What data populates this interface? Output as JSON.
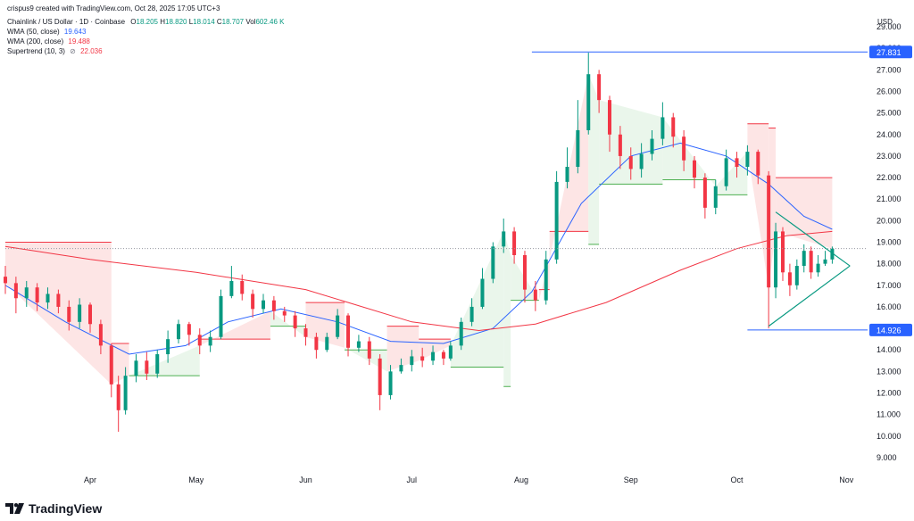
{
  "header": {
    "attribution": "crispus9 created with TradingView.com, Oct 28, 2025 17:05 UTC+3",
    "symbol": "Chainlink / US Dollar · 1D · Coinbase",
    "open_label": "O",
    "open": "18.205",
    "high_label": "H",
    "high": "18.820",
    "low_label": "L",
    "low": "18.014",
    "close_label": "C",
    "close": "18.707",
    "volume_label": "Vol",
    "volume": "602.46 K"
  },
  "indicators": {
    "wma50": {
      "label": "WMA (50, close)",
      "value": "19.643"
    },
    "wma200": {
      "label": "WMA (200, close)",
      "value": "19.488"
    },
    "supertrend": {
      "label": "Supertrend (10, 3)",
      "value": "22.036"
    }
  },
  "logo": {
    "text": "TradingView"
  },
  "colors": {
    "up": "#089981",
    "down": "#f23645",
    "wma50": "#2962ff",
    "wma200": "#f23645",
    "st_up_fill": "#e8f5e9",
    "st_down_fill": "#fde2e2",
    "level": "#2962ff",
    "triangle": "#089981"
  },
  "chart_data": {
    "type": "line",
    "title": "Chainlink / US Dollar · 1D · Coinbase",
    "currency_label": "USD",
    "y_ticks": [
      "9.000",
      "10.000",
      "11.000",
      "12.000",
      "13.000",
      "14.000",
      "15.000",
      "16.000",
      "17.000",
      "18.000",
      "19.000",
      "20.000",
      "21.000",
      "22.000",
      "23.000",
      "24.000",
      "25.000",
      "26.000",
      "27.000",
      "28.000",
      "29.000"
    ],
    "ylim": [
      8.5,
      29.5
    ],
    "x_ticks": [
      "Apr",
      "May",
      "Jun",
      "Jul",
      "Aug",
      "Sep",
      "Oct",
      "Nov"
    ],
    "date_range": [
      "2025-03-08",
      "2025-11-07"
    ],
    "price_labels": [
      {
        "value": 27.831,
        "text": "27.831"
      },
      {
        "value": 14.926,
        "text": "14.926"
      }
    ],
    "current_price": 18.707,
    "series": [
      {
        "name": "WMA (50, close)",
        "x": [
          "2025-03-08",
          "2025-03-25",
          "2025-04-12",
          "2025-04-28",
          "2025-05-10",
          "2025-05-25",
          "2025-06-10",
          "2025-06-25",
          "2025-07-10",
          "2025-07-24",
          "2025-08-04",
          "2025-08-18",
          "2025-09-01",
          "2025-09-15",
          "2025-09-28",
          "2025-10-10",
          "2025-10-20",
          "2025-10-28"
        ],
        "y": [
          17.0,
          15.3,
          13.8,
          14.2,
          15.3,
          15.9,
          15.3,
          14.4,
          14.3,
          15.0,
          16.7,
          20.8,
          23.0,
          23.6,
          23.0,
          21.7,
          20.2,
          19.6
        ]
      },
      {
        "name": "WMA (200, close)",
        "x": [
          "2025-03-08",
          "2025-04-01",
          "2025-05-01",
          "2025-06-01",
          "2025-07-01",
          "2025-07-20",
          "2025-08-05",
          "2025-08-25",
          "2025-09-15",
          "2025-10-01",
          "2025-10-15",
          "2025-10-28"
        ],
        "y": [
          18.8,
          18.2,
          17.6,
          16.8,
          15.3,
          14.9,
          15.2,
          16.2,
          17.7,
          18.7,
          19.3,
          19.5
        ]
      },
      {
        "name": "Supertrend (10, 3)",
        "x": [
          "2025-03-08",
          "2025-04-07",
          "2025-04-12",
          "2025-05-02",
          "2025-05-22",
          "2025-06-01",
          "2025-06-12",
          "2025-06-24",
          "2025-07-03",
          "2025-07-12",
          "2025-07-27",
          "2025-07-29",
          "2025-08-06",
          "2025-08-09",
          "2025-08-20",
          "2025-08-23",
          "2025-09-10",
          "2025-09-25",
          "2025-10-04",
          "2025-10-10",
          "2025-10-12",
          "2025-10-28"
        ],
        "y": [
          19.0,
          14.3,
          12.8,
          14.5,
          15.1,
          16.2,
          14.0,
          15.1,
          14.5,
          13.2,
          12.3,
          16.3,
          16.8,
          19.5,
          18.9,
          21.7,
          21.9,
          21.2,
          24.5,
          24.3,
          22.0,
          22.0
        ]
      }
    ],
    "candles": [
      [
        "2025-03-08",
        17.4,
        17.1,
        17.9,
        16.6
      ],
      [
        "2025-03-11",
        17.1,
        16.4,
        17.4,
        15.7
      ],
      [
        "2025-03-14",
        16.4,
        16.9,
        17.2,
        16.0
      ],
      [
        "2025-03-17",
        16.9,
        16.2,
        17.1,
        15.8
      ],
      [
        "2025-03-20",
        16.2,
        16.6,
        16.9,
        15.9
      ],
      [
        "2025-03-23",
        16.6,
        16.0,
        16.8,
        15.7
      ],
      [
        "2025-03-26",
        16.0,
        15.3,
        16.3,
        14.9
      ],
      [
        "2025-03-29",
        15.3,
        16.1,
        16.4,
        15.0
      ],
      [
        "2025-04-01",
        16.1,
        15.2,
        16.2,
        14.8
      ],
      [
        "2025-04-04",
        15.2,
        14.2,
        15.4,
        13.8
      ],
      [
        "2025-04-07",
        14.2,
        12.4,
        14.3,
        11.8
      ],
      [
        "2025-04-09",
        12.4,
        11.2,
        12.8,
        10.2
      ],
      [
        "2025-04-11",
        11.2,
        12.8,
        13.2,
        11.0
      ],
      [
        "2025-04-14",
        12.8,
        13.5,
        13.8,
        12.5
      ],
      [
        "2025-04-17",
        13.5,
        12.9,
        13.9,
        12.6
      ],
      [
        "2025-04-20",
        12.9,
        13.8,
        14.0,
        12.7
      ],
      [
        "2025-04-23",
        13.8,
        14.5,
        14.9,
        13.4
      ],
      [
        "2025-04-26",
        14.5,
        15.2,
        15.4,
        14.3
      ],
      [
        "2025-04-29",
        15.2,
        14.7,
        15.3,
        14.2
      ],
      [
        "2025-05-02",
        14.7,
        14.2,
        15.0,
        13.8
      ],
      [
        "2025-05-05",
        14.2,
        14.6,
        14.9,
        13.9
      ],
      [
        "2025-05-08",
        14.6,
        16.5,
        16.8,
        14.5
      ],
      [
        "2025-05-11",
        16.5,
        17.2,
        17.9,
        16.4
      ],
      [
        "2025-05-14",
        17.2,
        16.6,
        17.5,
        16.3
      ],
      [
        "2025-05-17",
        16.6,
        15.9,
        16.8,
        15.5
      ],
      [
        "2025-05-20",
        15.9,
        16.3,
        16.6,
        15.7
      ],
      [
        "2025-05-23",
        16.3,
        15.8,
        16.5,
        15.4
      ],
      [
        "2025-05-26",
        15.8,
        15.6,
        16.0,
        15.3
      ],
      [
        "2025-05-29",
        15.6,
        15.0,
        15.8,
        14.6
      ],
      [
        "2025-06-01",
        15.0,
        14.6,
        15.2,
        14.2
      ],
      [
        "2025-06-04",
        14.6,
        14.0,
        14.8,
        13.6
      ],
      [
        "2025-06-07",
        14.0,
        14.6,
        14.8,
        13.9
      ],
      [
        "2025-06-10",
        14.6,
        15.6,
        15.9,
        14.5
      ],
      [
        "2025-06-13",
        15.6,
        14.1,
        15.7,
        13.7
      ],
      [
        "2025-06-16",
        14.1,
        14.4,
        14.7,
        13.9
      ],
      [
        "2025-06-19",
        14.4,
        13.6,
        14.6,
        13.3
      ],
      [
        "2025-06-22",
        13.6,
        11.9,
        13.8,
        11.2
      ],
      [
        "2025-06-25",
        11.9,
        13.0,
        13.3,
        11.7
      ],
      [
        "2025-06-28",
        13.0,
        13.3,
        13.6,
        12.9
      ],
      [
        "2025-07-01",
        13.3,
        13.7,
        14.0,
        13.0
      ],
      [
        "2025-07-04",
        13.7,
        13.5,
        14.1,
        13.2
      ],
      [
        "2025-07-07",
        13.5,
        13.9,
        14.2,
        13.3
      ],
      [
        "2025-07-10",
        13.9,
        13.6,
        14.0,
        13.3
      ],
      [
        "2025-07-12",
        13.6,
        14.2,
        14.4,
        13.5
      ],
      [
        "2025-07-15",
        14.2,
        15.3,
        15.5,
        14.0
      ],
      [
        "2025-07-18",
        15.3,
        16.0,
        16.4,
        15.1
      ],
      [
        "2025-07-21",
        16.0,
        17.3,
        17.8,
        15.9
      ],
      [
        "2025-07-24",
        17.3,
        18.8,
        19.0,
        17.1
      ],
      [
        "2025-07-27",
        18.8,
        19.5,
        20.1,
        18.5
      ],
      [
        "2025-07-30",
        19.5,
        18.4,
        19.7,
        18.0
      ],
      [
        "2025-08-02",
        18.4,
        16.8,
        18.6,
        16.2
      ],
      [
        "2025-08-05",
        16.8,
        16.3,
        17.2,
        15.8
      ],
      [
        "2025-08-08",
        16.3,
        18.2,
        18.6,
        16.1
      ],
      [
        "2025-08-11",
        18.2,
        21.8,
        22.3,
        18.0
      ],
      [
        "2025-08-14",
        21.8,
        22.5,
        23.4,
        21.5
      ],
      [
        "2025-08-17",
        22.5,
        24.2,
        25.6,
        22.2
      ],
      [
        "2025-08-20",
        24.2,
        26.8,
        27.8,
        24.0
      ],
      [
        "2025-08-23",
        26.8,
        25.6,
        27.0,
        25.0
      ],
      [
        "2025-08-26",
        25.6,
        24.0,
        25.8,
        23.2
      ],
      [
        "2025-08-29",
        24.0,
        23.0,
        24.4,
        22.4
      ],
      [
        "2025-09-01",
        23.0,
        22.4,
        23.4,
        21.9
      ],
      [
        "2025-09-04",
        22.4,
        23.1,
        23.6,
        22.0
      ],
      [
        "2025-09-07",
        23.1,
        23.8,
        24.2,
        22.8
      ],
      [
        "2025-09-10",
        23.8,
        24.8,
        25.5,
        23.5
      ],
      [
        "2025-09-13",
        24.8,
        23.9,
        25.0,
        23.4
      ],
      [
        "2025-09-16",
        23.9,
        22.8,
        24.2,
        22.3
      ],
      [
        "2025-09-19",
        22.8,
        22.0,
        23.0,
        21.5
      ],
      [
        "2025-09-22",
        22.0,
        20.6,
        22.2,
        20.1
      ],
      [
        "2025-09-25",
        20.6,
        21.6,
        21.9,
        20.3
      ],
      [
        "2025-09-28",
        21.6,
        22.9,
        23.3,
        21.4
      ],
      [
        "2025-10-01",
        22.9,
        22.5,
        23.2,
        22.0
      ],
      [
        "2025-10-04",
        22.5,
        23.2,
        23.5,
        22.1
      ],
      [
        "2025-10-07",
        23.2,
        22.1,
        23.3,
        21.7
      ],
      [
        "2025-10-10",
        22.1,
        16.9,
        22.3,
        15.0
      ],
      [
        "2025-10-12",
        16.9,
        19.5,
        19.9,
        16.4
      ],
      [
        "2025-10-14",
        19.5,
        17.6,
        19.7,
        17.2
      ],
      [
        "2025-10-16",
        17.6,
        17.0,
        18.0,
        16.5
      ],
      [
        "2025-10-18",
        17.0,
        17.9,
        18.2,
        16.8
      ],
      [
        "2025-10-20",
        17.9,
        18.6,
        18.9,
        17.6
      ],
      [
        "2025-10-22",
        18.6,
        17.6,
        18.8,
        17.3
      ],
      [
        "2025-10-24",
        17.6,
        18.0,
        18.4,
        17.4
      ],
      [
        "2025-10-26",
        18.0,
        18.2,
        18.6,
        17.9
      ],
      [
        "2025-10-28",
        18.2,
        18.7,
        18.8,
        18.0
      ]
    ],
    "triangle": {
      "upper": [
        [
          "2025-10-12",
          20.4
        ],
        [
          "2025-11-02",
          17.9
        ]
      ],
      "lower": [
        [
          "2025-10-10",
          15.1
        ],
        [
          "2025-11-02",
          17.9
        ]
      ]
    }
  }
}
